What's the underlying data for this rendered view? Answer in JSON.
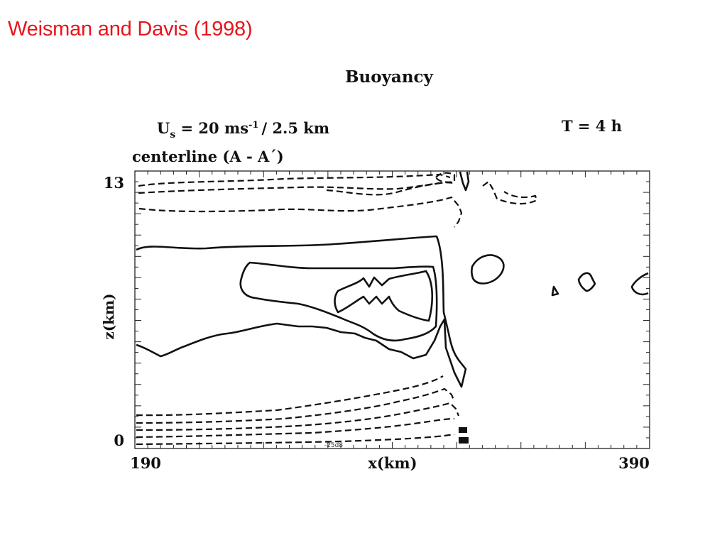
{
  "slide": {
    "title": "Weisman and Davis (1998)",
    "title_color": "#e8141c"
  },
  "chart_data": {
    "type": "contour",
    "title": "Buoyancy",
    "shear_label_main": "U",
    "shear_label_sub": "s",
    "shear_label_rest": " = 20 ms",
    "shear_label_sup": "-1",
    "shear_label_tail": "/ 2.5 km",
    "time_label": "T = 4 h",
    "panel_label": "centerline (A - A´)",
    "xlabel": "x(km)",
    "ylabel": "z(km)",
    "xlim": [
      190,
      390
    ],
    "ylim": [
      0,
      13
    ],
    "x_tick_labels": [
      "190",
      "390"
    ],
    "y_tick_labels": [
      "0",
      "13"
    ],
    "grid": false,
    "line_styles": {
      "positive": "solid",
      "negative": "dashed"
    },
    "annotation": "-25d8"
  }
}
